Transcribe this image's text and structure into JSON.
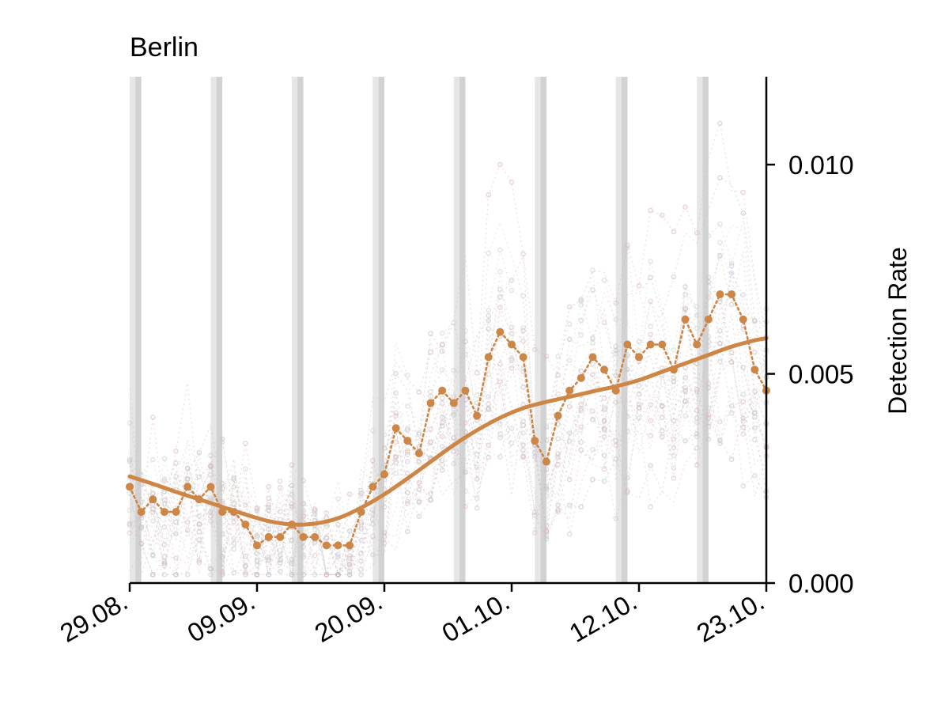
{
  "chart_data": {
    "type": "line",
    "title": "Berlin",
    "xlabel": "",
    "ylabel": "Detection Rate",
    "x_tick_labels": [
      "29.08.",
      "09.09.",
      "20.09.",
      "01.10.",
      "12.10.",
      "23.10."
    ],
    "y_tick_labels": [
      "0.000",
      "0.005",
      "0.010"
    ],
    "y_ticks": [
      0.0,
      0.005,
      0.01
    ],
    "xlim": [
      "2020-08-29",
      "2020-10-23"
    ],
    "ylim": [
      0.0,
      0.0121
    ],
    "y_axis_side": "right",
    "grid": false,
    "legend": "none",
    "weekend_bands": [
      [
        "2020-08-29",
        "2020-08-30"
      ],
      [
        "2020-09-05",
        "2020-09-06"
      ],
      [
        "2020-09-12",
        "2020-09-13"
      ],
      [
        "2020-09-19",
        "2020-09-20"
      ],
      [
        "2020-09-26",
        "2020-09-27"
      ],
      [
        "2020-10-03",
        "2020-10-04"
      ],
      [
        "2020-10-10",
        "2020-10-11"
      ],
      [
        "2020-10-17",
        "2020-10-18"
      ]
    ],
    "colors": {
      "main": "#cd8646",
      "band_light": "#e6e6e6",
      "band_dark": "#d2d2d2",
      "background_series": [
        "#d9b6c3",
        "#c7c7d6",
        "#d8c0c0",
        "#ccd6c4",
        "#bfbfbf"
      ]
    },
    "series": [
      {
        "label": "daily",
        "style": "dotted-with-markers",
        "x": [
          "2020-08-29",
          "2020-08-30",
          "2020-08-31",
          "2020-09-01",
          "2020-09-02",
          "2020-09-03",
          "2020-09-04",
          "2020-09-05",
          "2020-09-06",
          "2020-09-07",
          "2020-09-08",
          "2020-09-09",
          "2020-09-10",
          "2020-09-11",
          "2020-09-12",
          "2020-09-13",
          "2020-09-14",
          "2020-09-15",
          "2020-09-16",
          "2020-09-17",
          "2020-09-18",
          "2020-09-19",
          "2020-09-20",
          "2020-09-21",
          "2020-09-22",
          "2020-09-23",
          "2020-09-24",
          "2020-09-25",
          "2020-09-26",
          "2020-09-27",
          "2020-09-28",
          "2020-09-29",
          "2020-09-30",
          "2020-10-01",
          "2020-10-02",
          "2020-10-03",
          "2020-10-04",
          "2020-10-05",
          "2020-10-06",
          "2020-10-07",
          "2020-10-08",
          "2020-10-09",
          "2020-10-10",
          "2020-10-11",
          "2020-10-12",
          "2020-10-13",
          "2020-10-14",
          "2020-10-15",
          "2020-10-16",
          "2020-10-17",
          "2020-10-18",
          "2020-10-19",
          "2020-10-20",
          "2020-10-21",
          "2020-10-22",
          "2020-10-23"
        ],
        "y": [
          0.0023,
          0.0017,
          0.002,
          0.0017,
          0.0017,
          0.0023,
          0.002,
          0.0023,
          0.0017,
          0.0017,
          0.0014,
          0.0009,
          0.0011,
          0.0011,
          0.0014,
          0.0011,
          0.0011,
          0.0009,
          0.0009,
          0.0009,
          0.0017,
          0.0023,
          0.0026,
          0.0037,
          0.0034,
          0.0031,
          0.0043,
          0.0046,
          0.0043,
          0.0046,
          0.004,
          0.0054,
          0.006,
          0.0057,
          0.0054,
          0.0034,
          0.0029,
          0.004,
          0.0046,
          0.0049,
          0.0054,
          0.0051,
          0.0046,
          0.0057,
          0.0054,
          0.0057,
          0.0057,
          0.0051,
          0.0063,
          0.0057,
          0.0063,
          0.0069,
          0.0069,
          0.0063,
          0.0051,
          0.0046
        ]
      },
      {
        "label": "smoothed",
        "style": "solid",
        "x": [
          "2020-08-29",
          "2020-08-31",
          "2020-09-02",
          "2020-09-04",
          "2020-09-06",
          "2020-09-08",
          "2020-09-10",
          "2020-09-12",
          "2020-09-14",
          "2020-09-16",
          "2020-09-18",
          "2020-09-20",
          "2020-09-22",
          "2020-09-24",
          "2020-09-26",
          "2020-09-28",
          "2020-09-30",
          "2020-10-02",
          "2020-10-04",
          "2020-10-06",
          "2020-10-08",
          "2020-10-10",
          "2020-10-12",
          "2020-10-14",
          "2020-10-16",
          "2020-10-18",
          "2020-10-20",
          "2020-10-22",
          "2020-10-23"
        ],
        "y": [
          0.00255,
          0.00237,
          0.00218,
          0.002,
          0.00182,
          0.00164,
          0.00148,
          0.0014,
          0.00142,
          0.00155,
          0.0018,
          0.00212,
          0.0025,
          0.0029,
          0.0033,
          0.00365,
          0.00395,
          0.00418,
          0.00433,
          0.00445,
          0.00458,
          0.0047,
          0.00485,
          0.00505,
          0.00525,
          0.00545,
          0.00565,
          0.0058,
          0.00585
        ]
      }
    ]
  }
}
